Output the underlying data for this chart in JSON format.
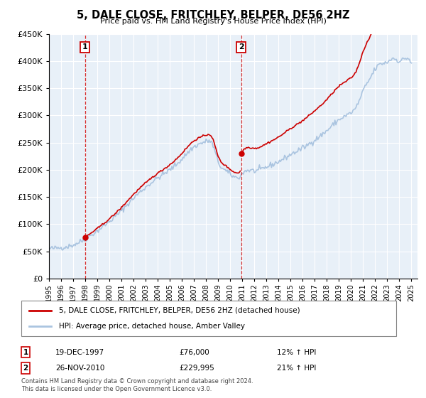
{
  "title": "5, DALE CLOSE, FRITCHLEY, BELPER, DE56 2HZ",
  "subtitle": "Price paid vs. HM Land Registry's House Price Index (HPI)",
  "legend_line1": "5, DALE CLOSE, FRITCHLEY, BELPER, DE56 2HZ (detached house)",
  "legend_line2": "HPI: Average price, detached house, Amber Valley",
  "footnote": "Contains HM Land Registry data © Crown copyright and database right 2024.\nThis data is licensed under the Open Government Licence v3.0.",
  "transaction1_label": "1",
  "transaction1_date": "19-DEC-1997",
  "transaction1_price": "£76,000",
  "transaction1_hpi": "12% ↑ HPI",
  "transaction2_label": "2",
  "transaction2_date": "26-NOV-2010",
  "transaction2_price": "£229,995",
  "transaction2_hpi": "21% ↑ HPI",
  "hpi_color": "#aac4e0",
  "price_color": "#cc0000",
  "vline_color": "#cc0000",
  "background_color": "#e8f0f8",
  "plot_bg_color": "#e8f0f8",
  "ylim": [
    0,
    450000
  ],
  "xmin": 1995.0,
  "xmax": 2025.5,
  "transaction1_x": 1997.97,
  "transaction2_x": 2010.9,
  "transaction1_y": 76000,
  "transaction2_y": 229995,
  "yticks": [
    0,
    50000,
    100000,
    150000,
    200000,
    250000,
    300000,
    350000,
    400000,
    450000
  ]
}
